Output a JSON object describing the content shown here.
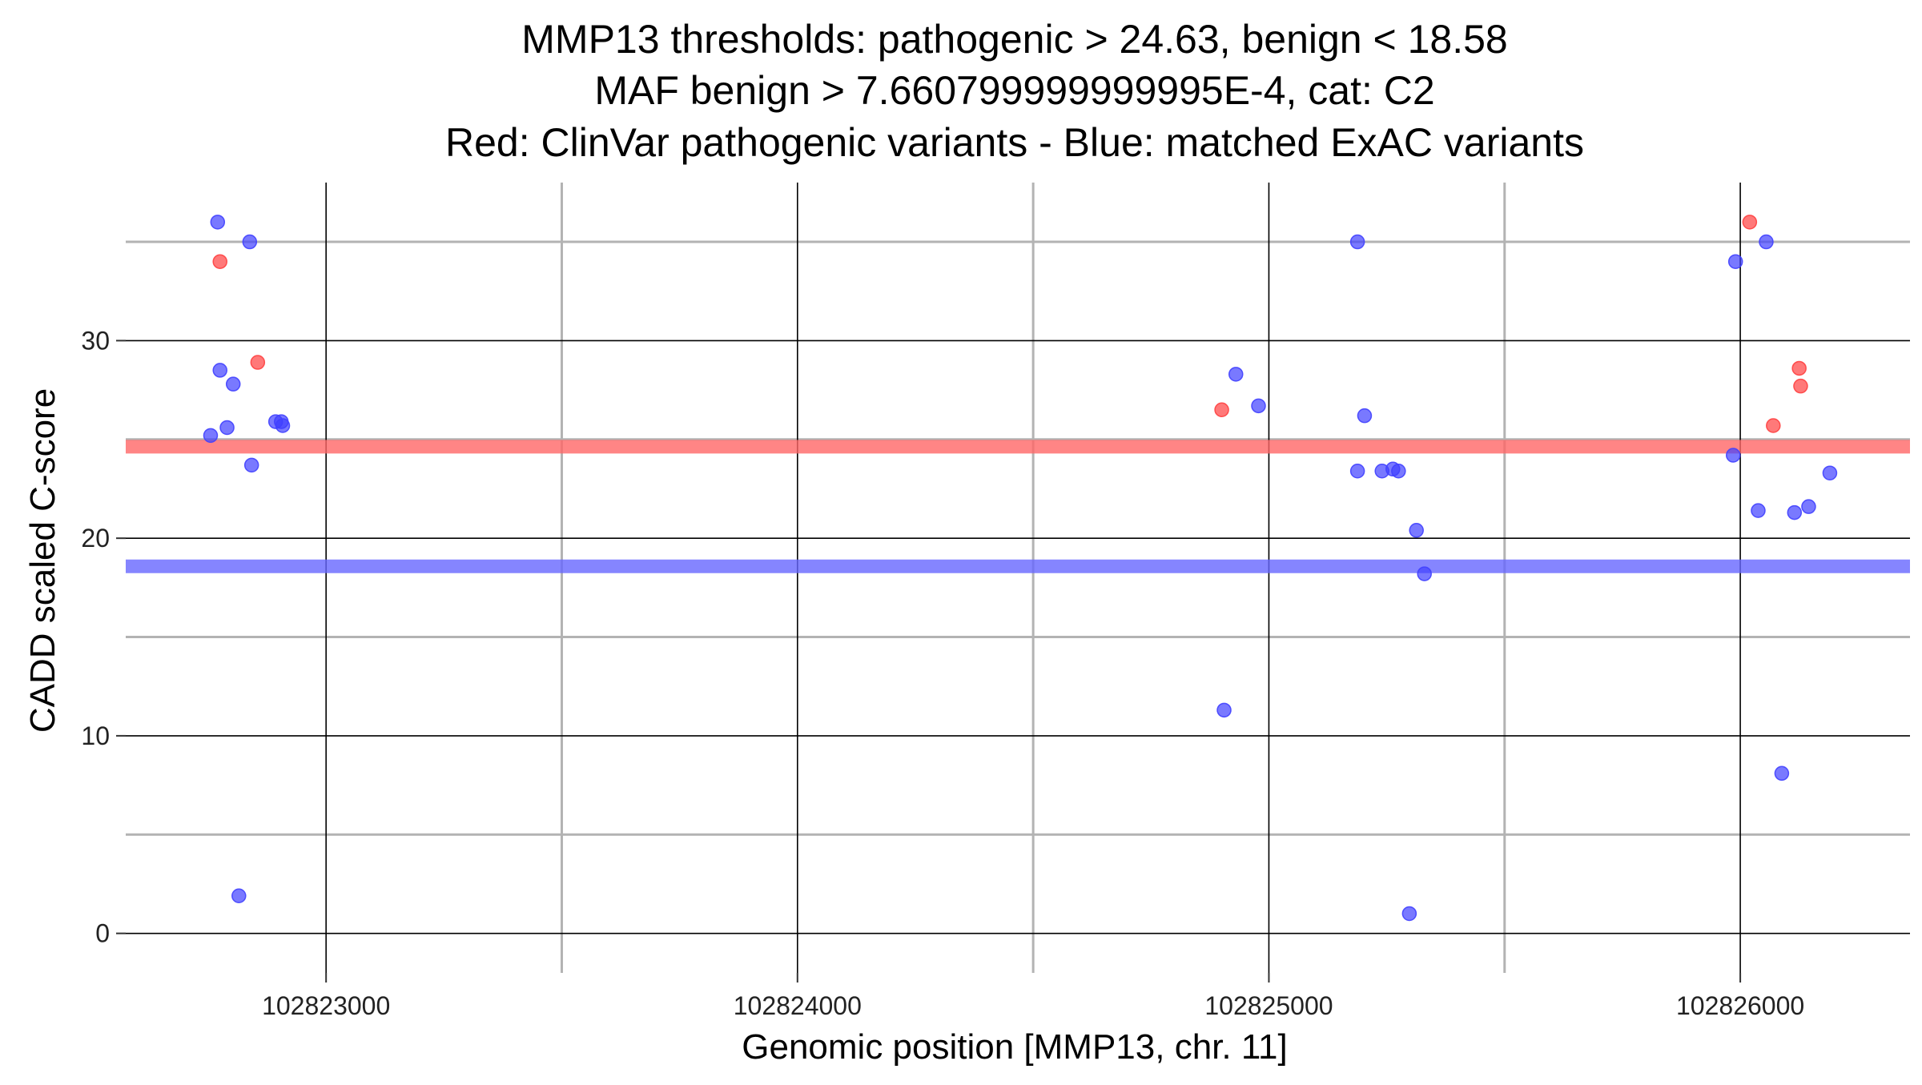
{
  "chart_data": {
    "type": "scatter",
    "title_lines": [
      "MMP13 thresholds: pathogenic > 24.63, benign < 18.58",
      "MAF benign > 7.660799999999995E-4, cat: C2",
      "Red: ClinVar pathogenic variants - Blue: matched ExAC variants"
    ],
    "xlabel": "Genomic position [MMP13, chr. 11]",
    "ylabel": "CADD scaled C-score",
    "xlim": [
      102822575,
      102826360
    ],
    "ylim": [
      -2,
      38
    ],
    "x_major_ticks": [
      102823000,
      102824000,
      102825000,
      102826000
    ],
    "x_major_tick_labels": [
      "102823000",
      "102824000",
      "102825000",
      "102826000"
    ],
    "x_minor_gridlines": [
      102823500,
      102824500,
      102825500
    ],
    "y_major_ticks": [
      0,
      10,
      20,
      30
    ],
    "y_major_tick_labels": [
      "0",
      "10",
      "20",
      "30"
    ],
    "y_minor_gridlines": [
      5,
      15,
      25,
      35
    ],
    "grid": true,
    "thresholds": {
      "pathogenic": {
        "value": 24.63,
        "color": "#ff6666"
      },
      "benign": {
        "value": 18.58,
        "color": "#6666ff"
      }
    },
    "series": [
      {
        "name": "ClinVar pathogenic variants",
        "color": "#ff4040",
        "points": [
          {
            "x": 102822775,
            "y": 34.0
          },
          {
            "x": 102822855,
            "y": 28.9
          },
          {
            "x": 102824900,
            "y": 26.5
          },
          {
            "x": 102826020,
            "y": 36.0
          },
          {
            "x": 102826070,
            "y": 25.7
          },
          {
            "x": 102826125,
            "y": 28.6
          },
          {
            "x": 102826128,
            "y": 27.7
          }
        ]
      },
      {
        "name": "matched ExAC variants",
        "color": "#4040ff",
        "points": [
          {
            "x": 102822770,
            "y": 36.0
          },
          {
            "x": 102822838,
            "y": 35.0
          },
          {
            "x": 102822775,
            "y": 28.5
          },
          {
            "x": 102822803,
            "y": 27.8
          },
          {
            "x": 102822790,
            "y": 25.6
          },
          {
            "x": 102822755,
            "y": 25.2
          },
          {
            "x": 102822893,
            "y": 25.9
          },
          {
            "x": 102822905,
            "y": 25.9
          },
          {
            "x": 102822908,
            "y": 25.7
          },
          {
            "x": 102822842,
            "y": 23.7
          },
          {
            "x": 102822815,
            "y": 1.9
          },
          {
            "x": 102824930,
            "y": 28.3
          },
          {
            "x": 102824978,
            "y": 26.7
          },
          {
            "x": 102824905,
            "y": 11.3
          },
          {
            "x": 102825188,
            "y": 35.0
          },
          {
            "x": 102825203,
            "y": 26.2
          },
          {
            "x": 102825188,
            "y": 23.4
          },
          {
            "x": 102825240,
            "y": 23.4
          },
          {
            "x": 102825263,
            "y": 23.5
          },
          {
            "x": 102825275,
            "y": 23.4
          },
          {
            "x": 102825313,
            "y": 20.4
          },
          {
            "x": 102825330,
            "y": 18.2
          },
          {
            "x": 102825298,
            "y": 1.0
          },
          {
            "x": 102825990,
            "y": 34.0
          },
          {
            "x": 102826055,
            "y": 35.0
          },
          {
            "x": 102825985,
            "y": 24.2
          },
          {
            "x": 102826190,
            "y": 23.3
          },
          {
            "x": 102826038,
            "y": 21.4
          },
          {
            "x": 102826115,
            "y": 21.3
          },
          {
            "x": 102826145,
            "y": 21.6
          },
          {
            "x": 102826088,
            "y": 8.1
          }
        ]
      }
    ]
  }
}
